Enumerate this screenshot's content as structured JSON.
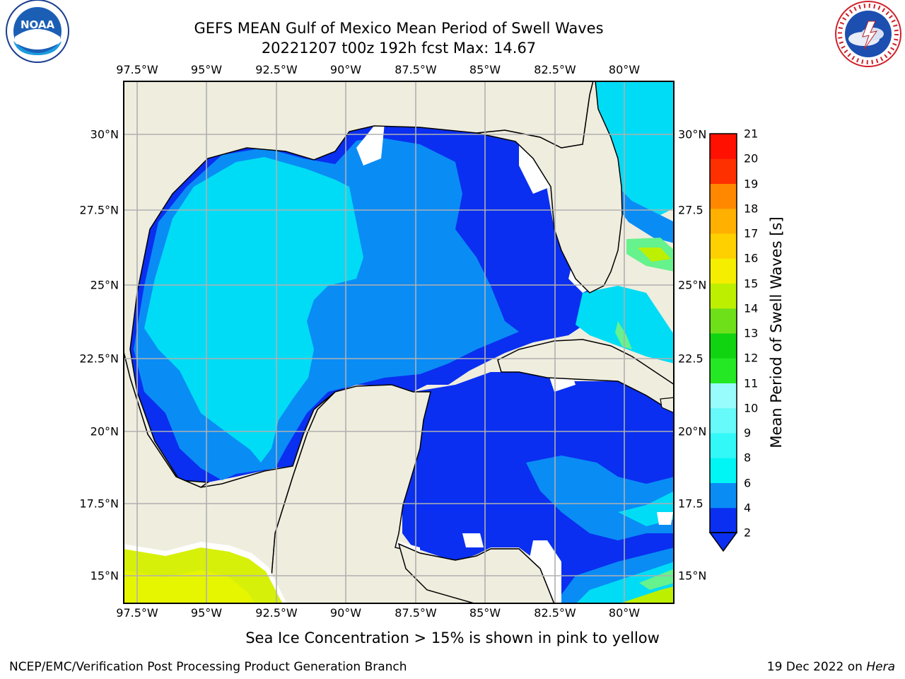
{
  "title": {
    "line1": "GEFS MEAN Gulf of Mexico Mean Period of Swell Waves",
    "line2": "20221207 t00z 192h fcst   Max: 14.67"
  },
  "map": {
    "lon_ticks": [
      "97.5°W",
      "95°W",
      "92.5°W",
      "90°W",
      "87.5°W",
      "85°W",
      "82.5°W",
      "80°W"
    ],
    "lat_ticks_left": [
      "30°N",
      "27.5°N",
      "25°N",
      "22.5°N",
      "20°N",
      "17.5°N",
      "15°N"
    ],
    "lat_ticks_right": [
      "30°N",
      "27.5",
      "25°N",
      "22.5",
      "20°N",
      "17.5",
      "15°N"
    ],
    "land_color": "#efedde",
    "grid_color": "#b0b0b0"
  },
  "colorbar": {
    "label": "Mean Period of Swell Waves [s]",
    "ticks": [
      "2",
      "4",
      "6",
      "8",
      "9",
      "10",
      "11",
      "12",
      "13",
      "14",
      "15",
      "16",
      "17",
      "18",
      "19",
      "20",
      "21"
    ],
    "colors": [
      "#0a2ff0",
      "#0a8cf5",
      "#00dcf5",
      "#00f5f5",
      "#33f8f8",
      "#66fafa",
      "#99fcfc",
      "#66f28c",
      "#24e824",
      "#11d411",
      "#6ee01a",
      "#bdf000",
      "#e6f500",
      "#f5ee00",
      "#ffd000",
      "#ffb000",
      "#ff8800",
      "#ff5a00",
      "#ff3000",
      "#ff1000"
    ]
  },
  "note": "Sea Ice Concentration > 15% is shown in pink to yellow",
  "footer": {
    "left": "NCEP/EMC/Verification Post Processing Product Generation Branch",
    "right_prefix": "19 Dec 2022 on ",
    "right_host": "Hera"
  },
  "logos": {
    "left": "noaa-logo",
    "left_text": "NOAA",
    "right": "nws-logo"
  }
}
